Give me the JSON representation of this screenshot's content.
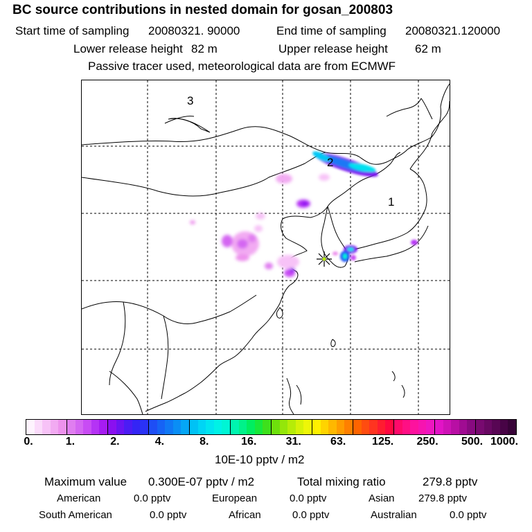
{
  "header": {
    "title": "BC  source contributions in nested domain for gosan_200803",
    "start_label": "Start time of sampling",
    "start_value": "20080321. 90000",
    "end_label": "End time of sampling",
    "end_value": "20080321.120000",
    "lower_label": "Lower release height",
    "lower_value": "82 m",
    "upper_label": "Upper release height",
    "upper_value": "62 m",
    "tracer_note": "Passive tracer used, meteorological data are from ECMWF"
  },
  "map": {
    "region_labels": [
      "1",
      "2",
      "3"
    ],
    "station_marker": "asterisk-icon"
  },
  "colorbar": {
    "ticks": [
      "0.",
      "1.",
      "2.",
      "4.",
      "8.",
      "16.",
      "31.",
      "63.",
      "125.",
      "250.",
      "500.",
      "1000."
    ],
    "segments": [
      [
        "#fef3fe",
        "#fbdbfb",
        "#f7c2f7",
        "#f2aaf2",
        "#ed92ed"
      ],
      [
        "#e07ef0",
        "#d466f2",
        "#c84cf4",
        "#b533f5",
        "#a61cf2"
      ],
      [
        "#8a10f0",
        "#6a14f2",
        "#4b1cf4",
        "#3425f5",
        "#2a32f5"
      ],
      [
        "#1e4ef5",
        "#1663f5",
        "#1078f5",
        "#0a8ef5",
        "#05a6f5"
      ],
      [
        "#00c2f5",
        "#00d5f5",
        "#00e5f0",
        "#00f2e6",
        "#00f5d5"
      ],
      [
        "#00f5b0",
        "#00f28a",
        "#00ee60",
        "#18e83a",
        "#3ee01c"
      ],
      [
        "#6ee00c",
        "#94e60a",
        "#b6ec08",
        "#d6f208",
        "#eef608"
      ],
      [
        "#fff000",
        "#ffd400",
        "#ffb800",
        "#ff9c00",
        "#ff8000"
      ],
      [
        "#ff6400",
        "#ff4c10",
        "#ff3420",
        "#ff1c30",
        "#ff0840"
      ],
      [
        "#ff0a6a",
        "#ff0f84",
        "#fd129e",
        "#f614b0",
        "#ee16c0"
      ],
      [
        "#e214c6",
        "#ce12b6",
        "#b80fa4",
        "#a00c92",
        "#880a80"
      ],
      [
        "#780a70",
        "#680862",
        "#580654",
        "#480446",
        "#380338"
      ]
    ],
    "units": "10E-10 pptv / m2"
  },
  "summary": {
    "max_label": "Maximum value",
    "max_value": "0.300E-07 pptv / m2",
    "total_label": "Total mixing ratio",
    "total_value": "279.8 pptv",
    "regions": [
      {
        "name": "American",
        "value": "0.0 pptv"
      },
      {
        "name": "European",
        "value": "0.0 pptv"
      },
      {
        "name": "Asian",
        "value": "279.8 pptv"
      },
      {
        "name": "South American",
        "value": "0.0 pptv"
      },
      {
        "name": "African",
        "value": "0.0 pptv"
      },
      {
        "name": "Australian",
        "value": "0.0 pptv"
      }
    ]
  }
}
